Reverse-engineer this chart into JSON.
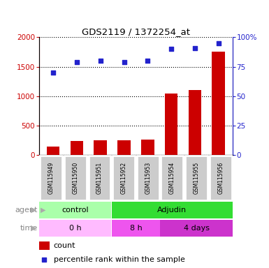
{
  "title": "GDS2119 / 1372254_at",
  "samples": [
    "GSM115949",
    "GSM115950",
    "GSM115951",
    "GSM115952",
    "GSM115953",
    "GSM115954",
    "GSM115955",
    "GSM115956"
  ],
  "counts": [
    150,
    240,
    250,
    250,
    265,
    1050,
    1100,
    1750
  ],
  "percentiles": [
    70,
    79,
    80,
    79,
    80,
    90,
    91,
    95
  ],
  "ylim_left": [
    0,
    2000
  ],
  "ylim_right": [
    0,
    100
  ],
  "yticks_left": [
    0,
    500,
    1000,
    1500,
    2000
  ],
  "yticks_right": [
    0,
    25,
    50,
    75,
    100
  ],
  "ytick_labels_left": [
    "0",
    "500",
    "1000",
    "1500",
    "2000"
  ],
  "ytick_labels_right": [
    "0",
    "25",
    "50",
    "75",
    "100%"
  ],
  "bar_color": "#cc0000",
  "dot_color": "#2222cc",
  "agent_labels": [
    {
      "text": "control",
      "start": 0,
      "end": 3,
      "color": "#aaffaa"
    },
    {
      "text": "Adjudin",
      "start": 3,
      "end": 8,
      "color": "#33dd33"
    }
  ],
  "time_labels": [
    {
      "text": "0 h",
      "start": 0,
      "end": 3,
      "color": "#ffbbff"
    },
    {
      "text": "8 h",
      "start": 3,
      "end": 5,
      "color": "#ee55ee"
    },
    {
      "text": "4 days",
      "start": 5,
      "end": 8,
      "color": "#cc33cc"
    }
  ],
  "legend_count_label": "count",
  "legend_pct_label": "percentile rank within the sample",
  "tick_color_left": "#cc0000",
  "tick_color_right": "#2222cc",
  "sample_box_color": "#cccccc"
}
